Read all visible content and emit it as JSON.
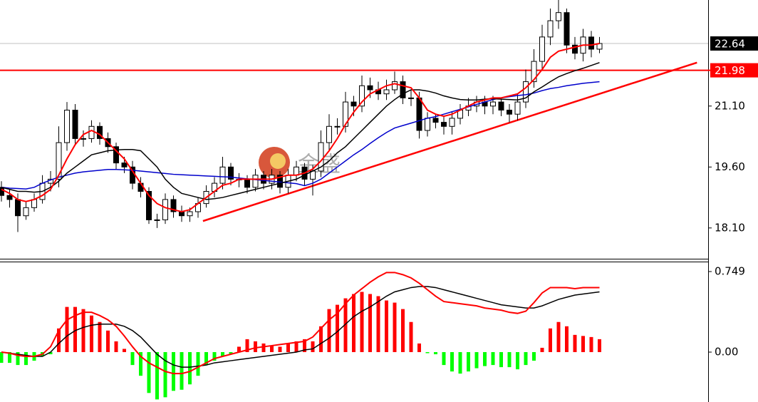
{
  "chart_data": [
    {
      "type": "candlestick",
      "open": [
        19.1,
        18.9,
        18.8,
        18.4,
        18.6,
        18.8,
        19.2,
        19.3,
        20.2,
        21.0,
        20.3,
        20.3,
        20.6,
        20.3,
        20.1,
        19.7,
        19.6,
        19.2,
        19.0,
        18.3,
        18.3,
        18.8,
        18.5,
        18.4,
        18.5,
        18.7,
        19.0,
        19.2,
        19.6,
        19.3,
        19.3,
        19.1,
        19.4,
        19.2,
        19.4,
        19.1,
        19.4,
        19.6,
        19.3,
        19.5,
        20.2,
        20.6,
        20.6,
        21.2,
        21.1,
        21.6,
        21.5,
        21.4,
        21.5,
        21.7,
        21.3,
        21.3,
        20.5,
        20.8,
        20.7,
        20.6,
        20.8,
        21.0,
        21.1,
        21.2,
        21.1,
        21.2,
        21.0,
        20.9,
        21.2,
        21.7,
        22.2,
        22.8,
        23.2,
        23.4,
        22.6,
        22.4,
        22.8,
        22.5
      ],
      "high": [
        19.25,
        19.05,
        18.95,
        18.75,
        18.95,
        19.4,
        19.5,
        20.6,
        21.2,
        21.15,
        20.5,
        20.75,
        20.7,
        20.45,
        20.2,
        19.85,
        19.75,
        19.35,
        19.1,
        18.45,
        18.95,
        18.9,
        18.65,
        18.6,
        18.85,
        19.15,
        19.35,
        19.85,
        19.7,
        19.45,
        19.4,
        19.55,
        19.5,
        19.55,
        19.5,
        19.55,
        19.75,
        19.7,
        19.65,
        20.5,
        20.9,
        20.8,
        21.45,
        21.35,
        21.85,
        21.8,
        21.7,
        21.75,
        21.95,
        21.85,
        21.5,
        21.45,
        20.95,
        20.9,
        20.85,
        20.95,
        21.15,
        21.3,
        21.35,
        21.35,
        21.35,
        21.3,
        21.15,
        21.4,
        22.0,
        22.5,
        23.1,
        23.5,
        23.75,
        23.5,
        22.8,
        23.0,
        22.95,
        22.8
      ],
      "low": [
        18.75,
        18.6,
        18.0,
        18.3,
        18.5,
        18.7,
        19.0,
        19.1,
        20.0,
        20.15,
        20.1,
        20.2,
        20.15,
        19.95,
        19.55,
        19.45,
        19.05,
        18.85,
        18.2,
        18.1,
        18.2,
        18.35,
        18.25,
        18.25,
        18.35,
        18.6,
        18.85,
        19.05,
        19.15,
        19.1,
        18.95,
        19.0,
        19.05,
        19.05,
        18.95,
        18.95,
        19.25,
        19.15,
        18.9,
        19.35,
        20.0,
        20.4,
        20.45,
        20.85,
        20.95,
        21.3,
        21.25,
        21.25,
        21.4,
        21.15,
        21.1,
        20.3,
        20.35,
        20.55,
        20.4,
        20.4,
        20.65,
        20.85,
        20.95,
        20.9,
        20.9,
        20.85,
        20.7,
        20.75,
        21.05,
        21.55,
        22.0,
        22.6,
        23.0,
        22.4,
        22.25,
        22.2,
        22.3,
        22.4
      ],
      "close": [
        18.9,
        18.8,
        18.4,
        18.6,
        18.8,
        19.2,
        19.3,
        20.2,
        21.0,
        20.3,
        20.3,
        20.6,
        20.3,
        20.1,
        19.7,
        19.6,
        19.2,
        19.0,
        18.3,
        18.3,
        18.8,
        18.5,
        18.4,
        18.5,
        18.7,
        19.0,
        19.2,
        19.6,
        19.3,
        19.3,
        19.1,
        19.4,
        19.2,
        19.4,
        19.1,
        19.4,
        19.6,
        19.3,
        19.5,
        20.2,
        20.6,
        20.6,
        21.2,
        21.1,
        21.6,
        21.5,
        21.4,
        21.5,
        21.7,
        21.3,
        21.3,
        20.5,
        20.8,
        20.7,
        20.6,
        20.8,
        21.0,
        21.1,
        21.2,
        21.1,
        21.2,
        21.0,
        20.9,
        21.2,
        21.7,
        22.2,
        22.8,
        23.2,
        23.4,
        22.6,
        22.4,
        22.8,
        22.5,
        22.64
      ],
      "up_color": "#ffffff",
      "down_color": "#000000",
      "series": [
        {
          "color": "#0000cc",
          "values": [
            19.1,
            19.08,
            19.07,
            19.06,
            19.1,
            19.2,
            19.28,
            19.35,
            19.4,
            19.45,
            19.48,
            19.5,
            19.52,
            19.54,
            19.54,
            19.53,
            19.52,
            19.5,
            19.48,
            19.46,
            19.44,
            19.42,
            19.41,
            19.4,
            19.39,
            19.38,
            19.37,
            19.36,
            19.35,
            19.33,
            19.31,
            19.29,
            19.27,
            19.25,
            19.23,
            19.21,
            19.19,
            19.14,
            19.2,
            19.3,
            19.45,
            19.6,
            19.75,
            19.9,
            20.03,
            20.18,
            20.32,
            20.45,
            20.56,
            20.62,
            20.68,
            20.74,
            20.8,
            20.84,
            20.9,
            20.96,
            21.02,
            21.08,
            21.14,
            21.2,
            21.26,
            21.3,
            21.33,
            21.36,
            21.38,
            21.42,
            21.48,
            21.53,
            21.56,
            21.6,
            21.63,
            21.66,
            21.68,
            21.7
          ]
        },
        {
          "color": "#000000",
          "values": [
            19.1,
            19.05,
            19.0,
            19.0,
            18.98,
            19.0,
            19.1,
            19.25,
            19.45,
            19.6,
            19.75,
            19.9,
            19.95,
            20.0,
            20.02,
            20.03,
            20.03,
            20.0,
            19.8,
            19.6,
            19.3,
            19.1,
            18.95,
            18.9,
            18.85,
            18.8,
            18.82,
            18.85,
            18.9,
            18.95,
            19.0,
            19.05,
            19.1,
            19.15,
            19.2,
            19.25,
            19.3,
            19.4,
            19.5,
            19.6,
            19.75,
            19.95,
            20.1,
            20.3,
            20.5,
            20.7,
            20.9,
            21.1,
            21.26,
            21.4,
            21.5,
            21.5,
            21.47,
            21.42,
            21.35,
            21.3,
            21.26,
            21.25,
            21.25,
            21.27,
            21.28,
            21.27,
            21.26,
            21.25,
            21.3,
            21.45,
            21.57,
            21.7,
            21.82,
            21.9,
            21.97,
            22.03,
            22.1,
            22.17
          ]
        },
        {
          "color": "#ff0000",
          "values": [
            19.05,
            18.95,
            18.8,
            18.75,
            18.8,
            18.9,
            19.05,
            19.4,
            19.8,
            20.15,
            20.4,
            20.5,
            20.4,
            20.2,
            20.0,
            19.8,
            19.5,
            19.2,
            18.9,
            18.7,
            18.6,
            18.55,
            18.5,
            18.55,
            18.7,
            18.85,
            19.0,
            19.15,
            19.2,
            19.3,
            19.3,
            19.3,
            19.3,
            19.3,
            19.35,
            19.4,
            19.4,
            19.45,
            19.55,
            19.75,
            20.0,
            20.3,
            20.65,
            20.95,
            21.2,
            21.4,
            21.5,
            21.6,
            21.65,
            21.6,
            21.55,
            21.3,
            21.0,
            20.9,
            20.85,
            20.9,
            21.0,
            21.1,
            21.2,
            21.25,
            21.3,
            21.3,
            21.35,
            21.4,
            21.55,
            21.75,
            22.0,
            22.3,
            22.45,
            22.5,
            22.55,
            22.6,
            22.6,
            22.64
          ]
        }
      ],
      "levels": [
        {
          "value": 22.64,
          "color": "#000000",
          "line_color": "#c0c0c0"
        },
        {
          "value": 21.98,
          "color": "#ff0000",
          "line_color": "#ff0000"
        }
      ],
      "trendline": {
        "x": [
          24.6,
          84.9
        ],
        "y": [
          18.27,
          22.17
        ],
        "color": "#ff0000"
      },
      "watermark": "金盛",
      "ylim": [
        17.36,
        23.71
      ],
      "yticks": [
        {
          "value": 18.1,
          "label": "18.10"
        },
        {
          "value": 19.6,
          "label": "19.60"
        },
        {
          "value": 21.1,
          "label": "21.10"
        }
      ]
    },
    {
      "type": "macd",
      "values": [
        -0.1,
        -0.1,
        -0.12,
        -0.12,
        -0.08,
        -0.04,
        -0.02,
        0.22,
        0.42,
        0.42,
        0.4,
        0.34,
        0.28,
        0.2,
        0.1,
        0.03,
        -0.12,
        -0.22,
        -0.38,
        -0.44,
        -0.42,
        -0.36,
        -0.35,
        -0.3,
        -0.22,
        -0.12,
        -0.08,
        -0.04,
        -0.02,
        0.05,
        0.12,
        0.1,
        0.08,
        0.06,
        0.05,
        0.08,
        0.1,
        0.12,
        0.1,
        0.24,
        0.4,
        0.44,
        0.5,
        0.54,
        0.56,
        0.54,
        0.52,
        0.48,
        0.46,
        0.4,
        0.28,
        0.08,
        -0.01,
        -0.02,
        -0.12,
        -0.18,
        -0.2,
        -0.18,
        -0.15,
        -0.13,
        -0.12,
        -0.14,
        -0.14,
        -0.16,
        -0.12,
        -0.08,
        0.04,
        0.22,
        0.28,
        0.24,
        0.16,
        0.15,
        0.14,
        0.12
      ],
      "up_color": "#ff0000",
      "down_color": "#00ff00",
      "series": [
        {
          "color": "#000000",
          "values": [
            0.0,
            -0.01,
            -0.02,
            -0.03,
            -0.04,
            -0.04,
            0.0,
            0.08,
            0.15,
            0.2,
            0.23,
            0.25,
            0.26,
            0.26,
            0.26,
            0.24,
            0.2,
            0.14,
            0.06,
            -0.02,
            -0.08,
            -0.12,
            -0.14,
            -0.14,
            -0.13,
            -0.12,
            -0.1,
            -0.09,
            -0.08,
            -0.07,
            -0.06,
            -0.05,
            -0.04,
            -0.03,
            -0.02,
            -0.01,
            0.0,
            0.02,
            0.03,
            0.08,
            0.13,
            0.19,
            0.26,
            0.33,
            0.38,
            0.42,
            0.47,
            0.52,
            0.56,
            0.58,
            0.6,
            0.61,
            0.61,
            0.6,
            0.58,
            0.56,
            0.54,
            0.52,
            0.5,
            0.48,
            0.46,
            0.44,
            0.43,
            0.42,
            0.41,
            0.41,
            0.43,
            0.46,
            0.49,
            0.51,
            0.53,
            0.54,
            0.55,
            0.56
          ]
        },
        {
          "color": "#ff0000",
          "values": [
            0.0,
            -0.01,
            -0.03,
            -0.04,
            -0.04,
            -0.02,
            0.05,
            0.2,
            0.3,
            0.34,
            0.37,
            0.37,
            0.34,
            0.3,
            0.24,
            0.15,
            0.05,
            -0.04,
            -0.1,
            -0.14,
            -0.18,
            -0.2,
            -0.2,
            -0.18,
            -0.14,
            -0.1,
            -0.06,
            -0.04,
            -0.02,
            0.0,
            0.02,
            0.04,
            0.05,
            0.06,
            0.07,
            0.08,
            0.09,
            0.1,
            0.14,
            0.22,
            0.3,
            0.36,
            0.45,
            0.53,
            0.59,
            0.65,
            0.7,
            0.74,
            0.74,
            0.72,
            0.69,
            0.64,
            0.58,
            0.52,
            0.47,
            0.46,
            0.45,
            0.44,
            0.43,
            0.41,
            0.4,
            0.39,
            0.37,
            0.36,
            0.38,
            0.46,
            0.55,
            0.6,
            0.6,
            0.6,
            0.59,
            0.6,
            0.6,
            0.6
          ]
        }
      ],
      "ylim": [
        -0.464,
        0.835
      ],
      "yticks": [
        {
          "value": 0,
          "label": "0.00"
        },
        0.749
      ]
    }
  ]
}
